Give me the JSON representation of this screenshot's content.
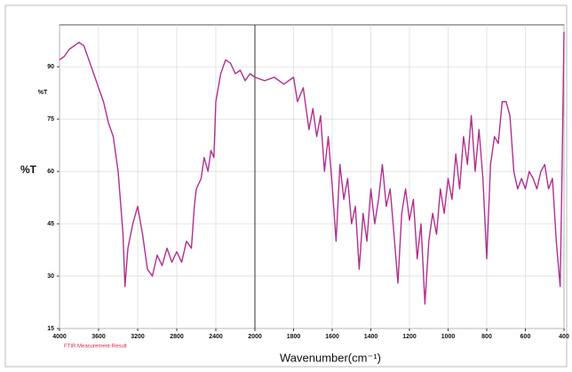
{
  "chart_data": {
    "type": "line",
    "y_axis_label": "%T",
    "y_unit_label": "%T",
    "x_axis_label": "Wavenumber(cm⁻¹)",
    "footer_note": "FTIR Measurement-Result",
    "xlim": [
      4000,
      400
    ],
    "x_scale_break": 2000,
    "ylim": [
      15,
      102
    ],
    "xticks": [
      4000,
      3600,
      3200,
      2800,
      2400,
      2000,
      1800,
      1600,
      1400,
      1200,
      1000,
      800,
      600,
      400
    ],
    "yticks": [
      15,
      30,
      45,
      60,
      75,
      90
    ],
    "grid": true,
    "series": [
      {
        "color": "#b0308f",
        "x": [
          4000,
          3950,
          3900,
          3850,
          3800,
          3750,
          3700,
          3650,
          3600,
          3550,
          3500,
          3450,
          3400,
          3350,
          3330,
          3300,
          3250,
          3200,
          3150,
          3100,
          3050,
          3000,
          2950,
          2900,
          2850,
          2800,
          2750,
          2700,
          2650,
          2620,
          2600,
          2550,
          2520,
          2480,
          2450,
          2420,
          2400,
          2350,
          2300,
          2250,
          2200,
          2150,
          2100,
          2050,
          2000,
          1950,
          1900,
          1850,
          1800,
          1780,
          1750,
          1720,
          1700,
          1680,
          1660,
          1640,
          1620,
          1600,
          1580,
          1560,
          1540,
          1520,
          1500,
          1480,
          1460,
          1440,
          1420,
          1400,
          1380,
          1360,
          1340,
          1320,
          1300,
          1280,
          1260,
          1240,
          1220,
          1200,
          1180,
          1160,
          1140,
          1120,
          1100,
          1080,
          1060,
          1040,
          1020,
          1000,
          980,
          960,
          940,
          920,
          900,
          880,
          860,
          840,
          820,
          800,
          780,
          760,
          740,
          720,
          700,
          680,
          660,
          640,
          620,
          600,
          580,
          560,
          540,
          520,
          500,
          480,
          460,
          440,
          420,
          410,
          400
        ],
        "values": [
          92,
          93,
          95,
          96,
          97,
          96,
          92,
          88,
          84,
          80,
          74,
          70,
          60,
          42,
          27,
          38,
          45,
          50,
          42,
          32,
          30,
          36,
          33,
          38,
          34,
          37,
          34,
          40,
          38,
          50,
          55,
          58,
          64,
          60,
          66,
          64,
          80,
          88,
          92,
          91,
          88,
          89,
          86,
          88,
          87,
          86,
          87,
          85,
          87,
          80,
          84,
          72,
          78,
          70,
          76,
          60,
          70,
          56,
          40,
          62,
          52,
          58,
          45,
          50,
          32,
          48,
          40,
          55,
          45,
          52,
          62,
          50,
          55,
          42,
          28,
          48,
          55,
          46,
          52,
          35,
          45,
          22,
          40,
          48,
          42,
          55,
          48,
          58,
          52,
          65,
          55,
          70,
          62,
          76,
          60,
          72,
          58,
          35,
          62,
          70,
          68,
          80,
          80,
          76,
          60,
          55,
          58,
          55,
          60,
          58,
          55,
          60,
          62,
          55,
          58,
          40,
          27,
          60,
          100
        ]
      }
    ]
  }
}
